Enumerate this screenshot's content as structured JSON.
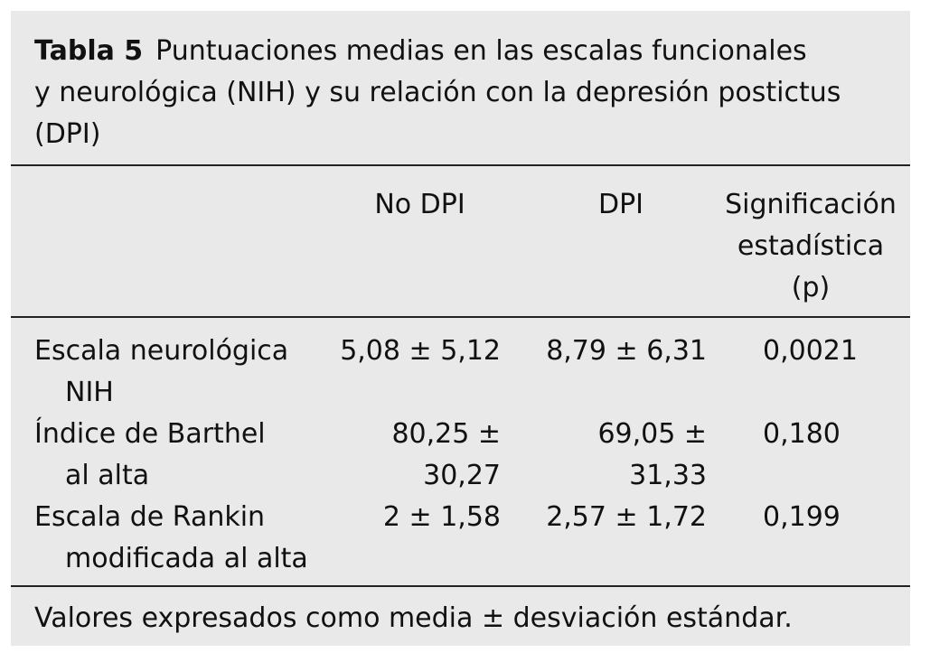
{
  "caption": {
    "label": "Tabla 5",
    "lines": [
      "Puntuaciones medias en las escalas funcionales",
      "y neurológica (NIH) y su relación con la depresión postictus",
      "(DPI)"
    ]
  },
  "headers": {
    "nodpi": "No DPI",
    "dpi": "DPI",
    "sig": [
      "Significación",
      "estadística",
      "(p)"
    ]
  },
  "rows": [
    {
      "label": [
        "Escala neurológica",
        "NIH"
      ],
      "nodpi": "5,08 ± 5,12",
      "dpi": "8,79 ± 6,31",
      "p": "0,0021"
    },
    {
      "label": [
        "Índice de Barthel",
        "al alta"
      ],
      "nodpi": "80,25 ± 30,27",
      "dpi": "69,05 ± 31,33",
      "p": "0,180"
    },
    {
      "label": [
        "Escala de Rankin",
        "modificada al alta"
      ],
      "nodpi": "2 ± 1,58",
      "dpi": "2,57 ± 1,72",
      "p": "0,199"
    }
  ],
  "footnote": "Valores expresados como media ± desviación estándar."
}
